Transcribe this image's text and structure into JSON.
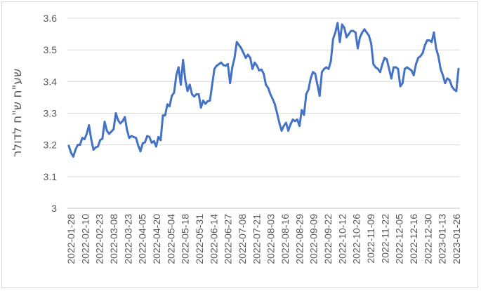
{
  "chart_data": {
    "type": "line",
    "title": "",
    "xlabel": "",
    "ylabel": "שע\"ח ש\"ח לדולר",
    "ylim": [
      3,
      3.6
    ],
    "yticks": [
      "3",
      "3.1",
      "3.2",
      "3.3",
      "3.4",
      "3.5",
      "3.6"
    ],
    "xticks": [
      "2022-01-28",
      "2022-02-10",
      "2022-02-23",
      "2022-03-08",
      "2022-03-23",
      "2022-04-05",
      "2022-04-20",
      "2022-05-04",
      "2022-05-18",
      "2022-05-31",
      "2022-06-14",
      "2022-06-27",
      "2022-07-08",
      "2022-07-21",
      "2022-08-03",
      "2022-08-16",
      "2022-08-29",
      "2022-09-09",
      "2022-09-22",
      "2022-10-12",
      "2022-10-26",
      "2022-11-09",
      "2022-11-22",
      "2022-12-05",
      "2022-12-16",
      "2022-12-30",
      "2023-01-13",
      "2023-01-26"
    ],
    "grid": "horizontal",
    "legend": "none",
    "line_color": "#4472C4",
    "series": [
      {
        "values": [
          3.197,
          3.175,
          3.163,
          3.185,
          3.2,
          3.2,
          3.222,
          3.218,
          3.235,
          3.262,
          3.218,
          3.185,
          3.192,
          3.195,
          3.215,
          3.22,
          3.273,
          3.245,
          3.235,
          3.242,
          3.25,
          3.3,
          3.278,
          3.268,
          3.275,
          3.288,
          3.247,
          3.222,
          3.228,
          3.225,
          3.222,
          3.198,
          3.18,
          3.205,
          3.208,
          3.228,
          3.225,
          3.207,
          3.212,
          3.195,
          3.225,
          3.215,
          3.293,
          3.293,
          3.328,
          3.322,
          3.355,
          3.365,
          3.42,
          3.445,
          3.39,
          3.468,
          3.405,
          3.37,
          3.39,
          3.36,
          3.353,
          3.36,
          3.36,
          3.318,
          3.34,
          3.33,
          3.338,
          3.34,
          3.39,
          3.44,
          3.45,
          3.455,
          3.46,
          3.452,
          3.45,
          3.455,
          3.395,
          3.445,
          3.475,
          3.525,
          3.515,
          3.505,
          3.49,
          3.475,
          3.485,
          3.475,
          3.44,
          3.46,
          3.45,
          3.435,
          3.438,
          3.425,
          3.39,
          3.38,
          3.36,
          3.345,
          3.328,
          3.3,
          3.27,
          3.245,
          3.26,
          3.27,
          3.245,
          3.265,
          3.28,
          3.275,
          3.28,
          3.26,
          3.31,
          3.295,
          3.36,
          3.375,
          3.41,
          3.43,
          3.425,
          3.39,
          3.355,
          3.43,
          3.44,
          3.445,
          3.44,
          3.465,
          3.535,
          3.555,
          3.585,
          3.525,
          3.58,
          3.57,
          3.54,
          3.55,
          3.56,
          3.56,
          3.555,
          3.505,
          3.54,
          3.555,
          3.565,
          3.555,
          3.545,
          3.52,
          3.455,
          3.445,
          3.44,
          3.43,
          3.455,
          3.475,
          3.47,
          3.44,
          3.41,
          3.445,
          3.445,
          3.44,
          3.385,
          3.395,
          3.44,
          3.445,
          3.44,
          3.435,
          3.42,
          3.455,
          3.475,
          3.48,
          3.49,
          3.515,
          3.53,
          3.53,
          3.525,
          3.555,
          3.505,
          3.48,
          3.44,
          3.42,
          3.395,
          3.41,
          3.405,
          3.385,
          3.375,
          3.37,
          3.44
        ]
      }
    ]
  }
}
